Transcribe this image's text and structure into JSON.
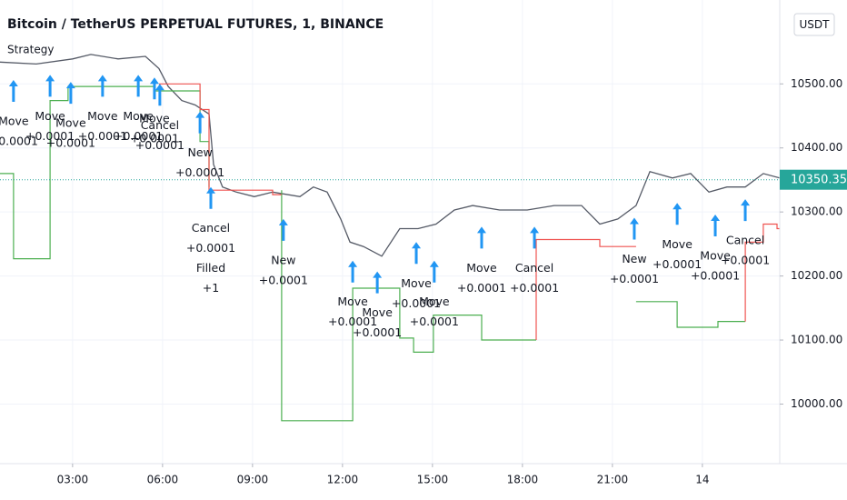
{
  "chart_data": {
    "type": "line",
    "title": "Bitcoin / TetherUS PERPETUAL FUTURES, 1, BINANCE",
    "subtitle": "Strategy",
    "currency": "USDT",
    "last_price": 10350.35,
    "last_price_color": "#26a69a",
    "xlim": [
      0.58,
      26.58
    ],
    "ylim": [
      9907,
      10631
    ],
    "grid": true,
    "xticks": [
      {
        "value": 3,
        "label": "03:00"
      },
      {
        "value": 6,
        "label": "06:00"
      },
      {
        "value": 9,
        "label": "09:00"
      },
      {
        "value": 12,
        "label": "12:00"
      },
      {
        "value": 15,
        "label": "15:00"
      },
      {
        "value": 18,
        "label": "18:00"
      },
      {
        "value": 21,
        "label": "21:00"
      },
      {
        "value": 24,
        "label": "14"
      }
    ],
    "yticks": [
      {
        "value": 10000,
        "label": "10000.00"
      },
      {
        "value": 10100,
        "label": "10100.00"
      },
      {
        "value": 10200,
        "label": "10200.00"
      },
      {
        "value": 10300,
        "label": "10300.00"
      },
      {
        "value": 10400,
        "label": "10400.00"
      },
      {
        "value": 10500,
        "label": "10500.00"
      }
    ],
    "series": [
      {
        "color": "#555a66",
        "x": [
          0.58,
          1.79,
          3.0,
          3.61,
          4.52,
          5.43,
          5.88,
          6.19,
          6.64,
          7.09,
          7.55,
          7.7,
          8.0,
          8.46,
          9.06,
          9.67,
          10.58,
          11.03,
          11.49,
          11.94,
          12.25,
          12.7,
          13.31,
          13.91,
          14.52,
          15.12,
          15.73,
          16.34,
          17.24,
          18.16,
          19.06,
          19.97,
          20.58,
          21.18,
          21.79,
          22.25,
          23.0,
          23.61,
          24.22,
          24.82,
          25.43,
          26.03,
          26.58
        ],
        "values": [
          10534,
          10531,
          10539,
          10546,
          10539,
          10543,
          10524,
          10496,
          10474,
          10467,
          10453,
          10374,
          10339,
          10331,
          10324,
          10331,
          10324,
          10339,
          10331,
          10289,
          10253,
          10246,
          10231,
          10274,
          10274,
          10281,
          10303,
          10310,
          10303,
          10303,
          10310,
          10310,
          10281,
          10289,
          10310,
          10363,
          10353,
          10360,
          10331,
          10339,
          10339,
          10360,
          10353
        ]
      },
      {
        "color": "#4caf50",
        "x": [
          0.58,
          1.03,
          1.03,
          2.25,
          2.25,
          2.85,
          2.85,
          5.73,
          5.73,
          7.25,
          7.25,
          7.55,
          7.55,
          null,
          9.97,
          9.97,
          12.34,
          12.34,
          13.91,
          13.91,
          14.37,
          14.37,
          15.03,
          15.03,
          16.64,
          16.64,
          18.46,
          null,
          21.79,
          23.16,
          23.16,
          24.52,
          24.52,
          25.43
        ],
        "values": [
          10360,
          10360,
          10227,
          10227,
          10474,
          10474,
          10496,
          10496,
          10489,
          10489,
          10410,
          10410,
          10339,
          null,
          10334,
          9974,
          9974,
          10181,
          10181,
          10103,
          10103,
          10081,
          10081,
          10139,
          10139,
          10100,
          10100,
          null,
          10160,
          10160,
          10120,
          10120,
          10129,
          10129
        ]
      },
      {
        "color": "#ef5350",
        "x": [
          5.88,
          7.25,
          7.25,
          7.55,
          7.55,
          9.67,
          9.67,
          9.97,
          null,
          18.46,
          18.46,
          20.58,
          20.58,
          21.79,
          null,
          25.43,
          25.43,
          26.03,
          26.03,
          26.49,
          26.49,
          26.58
        ],
        "values": [
          10500,
          10500,
          10460,
          10460,
          10334,
          10334,
          10327,
          10327,
          null,
          10100,
          10257,
          10257,
          10246,
          10246,
          null,
          10129,
          10253,
          10253,
          10281,
          10281,
          10274,
          10274
        ]
      }
    ],
    "annotation_color": "#2196f3",
    "annotations": [
      {
        "x": 1.03,
        "y": 10506,
        "lines": [
          "Move",
          "+0.0001"
        ]
      },
      {
        "x": 2.25,
        "y": 10514,
        "lines": [
          "Move",
          "+0.0001"
        ]
      },
      {
        "x": 2.94,
        "y": 10503,
        "lines": [
          "Move",
          "+0.0001"
        ]
      },
      {
        "x": 4.0,
        "y": 10514,
        "lines": [
          "Move",
          "+0.0001"
        ]
      },
      {
        "x": 5.19,
        "y": 10514,
        "lines": [
          "Move",
          "+0.0001"
        ]
      },
      {
        "x": 5.73,
        "y": 10510,
        "lines": [
          "Move",
          "+0.0001"
        ]
      },
      {
        "x": 5.91,
        "y": 10500,
        "lines": [
          "Cancel",
          "+0.0001"
        ]
      },
      {
        "x": 7.25,
        "y": 10457,
        "lines": [
          "New",
          "+0.0001"
        ]
      },
      {
        "x": 7.61,
        "y": 10339,
        "lines": [
          "Cancel",
          "+0.0001",
          "Filled",
          "+1"
        ]
      },
      {
        "x": 10.03,
        "y": 10289,
        "lines": [
          "New",
          "+0.0001"
        ]
      },
      {
        "x": 12.34,
        "y": 10224,
        "lines": [
          "Move",
          "+0.0001"
        ]
      },
      {
        "x": 13.16,
        "y": 10207,
        "lines": [
          "Move",
          "+0.0001"
        ]
      },
      {
        "x": 14.46,
        "y": 10253,
        "lines": [
          "Move",
          "+0.0001"
        ]
      },
      {
        "x": 15.06,
        "y": 10224,
        "lines": [
          "Move",
          "+0.0001"
        ]
      },
      {
        "x": 16.64,
        "y": 10277,
        "lines": [
          "Move",
          "+0.0001"
        ]
      },
      {
        "x": 18.4,
        "y": 10277,
        "lines": [
          "Cancel",
          "+0.0001"
        ]
      },
      {
        "x": 21.73,
        "y": 10291,
        "lines": [
          "New",
          "+0.0001"
        ]
      },
      {
        "x": 23.16,
        "y": 10314,
        "lines": [
          "Move",
          "+0.0001"
        ]
      },
      {
        "x": 24.43,
        "y": 10296,
        "lines": [
          "Move",
          "+0.0001"
        ]
      },
      {
        "x": 25.43,
        "y": 10320,
        "lines": [
          "Cancel",
          "+0.0001"
        ]
      }
    ]
  }
}
